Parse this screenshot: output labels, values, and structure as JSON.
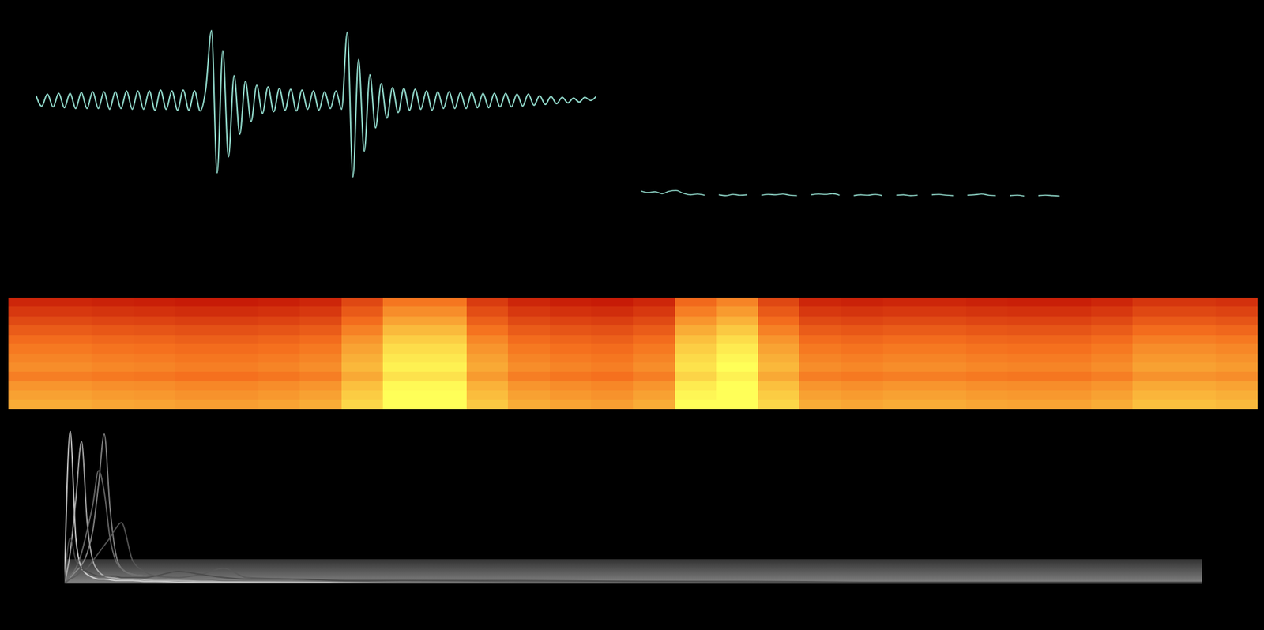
{
  "chart_data": [
    {
      "type": "line",
      "tick_labels": false,
      "color": "#8fd6c8",
      "ylim": [
        -10,
        10
      ],
      "values": [
        0.6,
        -0.7,
        0.8,
        -0.8,
        0.9,
        -0.9,
        0.9,
        -1.0,
        1.0,
        -1.0,
        1.1,
        -1.0,
        1.1,
        -1.1,
        1.1,
        -1.0,
        1.2,
        -1.1,
        1.2,
        -1.1,
        1.2,
        -1.2,
        1.3,
        -1.1,
        1.2,
        -1.2,
        1.3,
        -1.2,
        1.2,
        -1.3,
        1.5,
        8.7,
        -9.0,
        6.2,
        -7.0,
        3.1,
        -4.2,
        2.4,
        -2.6,
        1.9,
        -1.6,
        1.7,
        -1.4,
        1.5,
        -1.2,
        1.4,
        -1.3,
        1.3,
        -1.1,
        1.2,
        -1.2,
        1.1,
        -1.0,
        1.2,
        -1.1,
        8.5,
        -9.5,
        5.1,
        -6.3,
        3.2,
        -3.4,
        2.1,
        -2.2,
        1.6,
        -1.5,
        1.5,
        -1.2,
        1.4,
        -1.1,
        1.2,
        -1.2,
        1.1,
        -1.0,
        1.1,
        -1.0,
        1.0,
        -1.0,
        1.0,
        -0.9,
        0.9,
        -0.9,
        0.9,
        -0.8,
        0.9,
        -0.8,
        0.8,
        -0.7,
        0.8,
        -0.6,
        0.6,
        -0.5,
        0.5,
        -0.4,
        0.4,
        -0.3,
        0.3,
        -0.2,
        0.4,
        0.0,
        0.5
      ]
    },
    {
      "type": "line",
      "tick_labels": false,
      "color": "#8fd6c8",
      "ylim": [
        0,
        10
      ],
      "values": [
        1.6,
        1.2,
        1.4,
        0.9,
        1.5,
        1.7,
        1.0,
        0.6,
        0.8,
        0.5,
        null,
        0.6,
        0.4,
        0.7,
        0.5,
        0.6,
        null,
        0.5,
        0.7,
        0.6,
        0.8,
        0.5,
        0.4,
        null,
        0.6,
        0.8,
        0.7,
        0.9,
        0.5,
        null,
        0.4,
        0.6,
        0.5,
        0.7,
        0.4,
        null,
        0.5,
        0.6,
        0.4,
        0.5,
        null,
        0.6,
        0.7,
        0.5,
        0.4,
        null,
        0.5,
        0.6,
        0.8,
        0.5,
        0.4,
        null,
        0.4,
        0.5,
        0.3,
        null,
        0.4,
        0.5,
        0.4,
        0.3
      ]
    },
    {
      "type": "heatmap",
      "tick_labels": false,
      "zlim": [
        0,
        1
      ],
      "z": [
        [
          0.17,
          0.17,
          0.15,
          0.14,
          0.12,
          0.12,
          0.14,
          0.17,
          0.32,
          0.52,
          0.52,
          0.27,
          0.17,
          0.14,
          0.12,
          0.17,
          0.47,
          0.57,
          0.32,
          0.17,
          0.15,
          0.17,
          0.17,
          0.15,
          0.14,
          0.14,
          0.17,
          0.24,
          0.24,
          0.22
        ],
        [
          0.25,
          0.25,
          0.23,
          0.22,
          0.2,
          0.2,
          0.22,
          0.25,
          0.4,
          0.6,
          0.6,
          0.35,
          0.25,
          0.22,
          0.2,
          0.25,
          0.55,
          0.65,
          0.4,
          0.25,
          0.23,
          0.25,
          0.25,
          0.23,
          0.22,
          0.22,
          0.25,
          0.32,
          0.32,
          0.3
        ],
        [
          0.33,
          0.33,
          0.31,
          0.3,
          0.28,
          0.28,
          0.3,
          0.33,
          0.48,
          0.68,
          0.68,
          0.43,
          0.33,
          0.3,
          0.28,
          0.33,
          0.63,
          0.73,
          0.48,
          0.33,
          0.31,
          0.33,
          0.33,
          0.31,
          0.3,
          0.3,
          0.33,
          0.4,
          0.4,
          0.38
        ],
        [
          0.41,
          0.41,
          0.39,
          0.38,
          0.36,
          0.36,
          0.38,
          0.41,
          0.56,
          0.76,
          0.76,
          0.51,
          0.41,
          0.38,
          0.36,
          0.41,
          0.71,
          0.81,
          0.56,
          0.41,
          0.39,
          0.41,
          0.41,
          0.39,
          0.38,
          0.38,
          0.41,
          0.48,
          0.48,
          0.46
        ],
        [
          0.48,
          0.48,
          0.46,
          0.45,
          0.43,
          0.43,
          0.45,
          0.48,
          0.63,
          0.83,
          0.83,
          0.58,
          0.48,
          0.45,
          0.43,
          0.48,
          0.78,
          0.88,
          0.63,
          0.48,
          0.46,
          0.48,
          0.48,
          0.46,
          0.45,
          0.45,
          0.48,
          0.55,
          0.55,
          0.53
        ],
        [
          0.53,
          0.53,
          0.51,
          0.5,
          0.48,
          0.48,
          0.5,
          0.53,
          0.68,
          0.88,
          0.88,
          0.63,
          0.53,
          0.5,
          0.48,
          0.53,
          0.83,
          0.93,
          0.68,
          0.53,
          0.51,
          0.53,
          0.53,
          0.51,
          0.5,
          0.5,
          0.53,
          0.6,
          0.6,
          0.58
        ],
        [
          0.57,
          0.57,
          0.55,
          0.54,
          0.52,
          0.52,
          0.54,
          0.57,
          0.72,
          0.92,
          0.92,
          0.67,
          0.57,
          0.54,
          0.52,
          0.57,
          0.87,
          0.97,
          0.72,
          0.57,
          0.55,
          0.57,
          0.57,
          0.55,
          0.54,
          0.54,
          0.57,
          0.64,
          0.64,
          0.62
        ],
        [
          0.6,
          0.6,
          0.58,
          0.57,
          0.55,
          0.55,
          0.57,
          0.6,
          0.75,
          0.95,
          0.95,
          0.7,
          0.6,
          0.57,
          0.55,
          0.6,
          0.9,
          1,
          0.75,
          0.6,
          0.58,
          0.6,
          0.6,
          0.58,
          0.57,
          0.57,
          0.6,
          0.67,
          0.67,
          0.65
        ],
        [
          0.55,
          0.55,
          0.53,
          0.52,
          0.5,
          0.5,
          0.52,
          0.55,
          0.7,
          0.9,
          0.9,
          0.65,
          0.55,
          0.52,
          0.5,
          0.55,
          0.85,
          0.95,
          0.7,
          0.55,
          0.53,
          0.55,
          0.55,
          0.53,
          0.52,
          0.52,
          0.55,
          0.62,
          0.62,
          0.6
        ],
        [
          0.63,
          0.63,
          0.61,
          0.6,
          0.58,
          0.58,
          0.6,
          0.63,
          0.78,
          0.98,
          0.98,
          0.73,
          0.63,
          0.6,
          0.58,
          0.63,
          0.93,
          1,
          0.78,
          0.63,
          0.61,
          0.63,
          0.63,
          0.61,
          0.6,
          0.6,
          0.63,
          0.7,
          0.7,
          0.68
        ],
        [
          0.67,
          0.67,
          0.65,
          0.64,
          0.62,
          0.62,
          0.64,
          0.67,
          0.82,
          1,
          1,
          0.77,
          0.67,
          0.64,
          0.62,
          0.67,
          0.97,
          1,
          0.82,
          0.67,
          0.65,
          0.67,
          0.67,
          0.65,
          0.64,
          0.64,
          0.67,
          0.74,
          0.74,
          0.72
        ],
        [
          0.71,
          0.71,
          0.69,
          0.68,
          0.66,
          0.66,
          0.68,
          0.71,
          0.86,
          1,
          1,
          0.81,
          0.71,
          0.68,
          0.66,
          0.71,
          1,
          1,
          0.86,
          0.71,
          0.69,
          0.71,
          0.71,
          0.69,
          0.68,
          0.68,
          0.71,
          0.78,
          0.78,
          0.76
        ]
      ]
    },
    {
      "type": "line",
      "tick_labels": false,
      "xlim": [
        0,
        100
      ],
      "ylim": [
        0,
        10
      ],
      "x": [
        0,
        0.5,
        1,
        1.5,
        2,
        2.5,
        3,
        3.5,
        4,
        4.5,
        5,
        6,
        7,
        8,
        10,
        12,
        14,
        16,
        20,
        25,
        30,
        40,
        50,
        60,
        70,
        80,
        90,
        100
      ],
      "series": [
        {
          "color": "#d8d8d8",
          "values": [
            0,
            10,
            3,
            1,
            0.6,
            0.4,
            0.3,
            0.3,
            0.25,
            0.2,
            0.2,
            0.2,
            0.15,
            0.15,
            0.1,
            0.1,
            0.1,
            0.1,
            0.1,
            0.1,
            0.1,
            0.1,
            0.1,
            0.1,
            0.1,
            0.1,
            0.1,
            0.1
          ]
        },
        {
          "color": "#b4b4b4",
          "values": [
            0,
            2,
            5.5,
            9.3,
            4,
            1.5,
            0.8,
            0.5,
            0.4,
            0.35,
            0.3,
            0.3,
            0.25,
            0.2,
            0.2,
            0.15,
            0.15,
            0.15,
            0.1,
            0.1,
            0.1,
            0.1,
            0.1,
            0.1,
            0.1,
            0.1,
            0.1,
            0.1
          ]
        },
        {
          "color": "#8c8c8c",
          "values": [
            0,
            0.4,
            0.8,
            1.2,
            2,
            3.5,
            6.5,
            9.8,
            5,
            2,
            1,
            0.6,
            0.5,
            0.4,
            0.3,
            0.3,
            0.25,
            0.2,
            0.2,
            0.15,
            0.15,
            0.1,
            0.1,
            0.1,
            0.1,
            0.1,
            0.1,
            0.1
          ]
        },
        {
          "color": "#6e6e6e",
          "values": [
            0,
            0.5,
            1,
            2,
            3.5,
            5.2,
            7.4,
            6,
            3,
            1.5,
            1,
            0.6,
            0.5,
            0.4,
            0.3,
            0.3,
            0.2,
            0.2,
            0.2,
            0.15,
            0.1,
            0.1,
            0.1,
            0.1,
            0.1,
            0.1,
            0.1,
            0.1
          ]
        },
        {
          "color": "#5a5a5a",
          "values": [
            0,
            0.3,
            0.5,
            0.8,
            1,
            1.5,
            2,
            2.5,
            3,
            3.6,
            4,
            1.5,
            0.8,
            0.5,
            0.4,
            0.6,
            1,
            0.4,
            0.3,
            0.2,
            0.2,
            0.15,
            0.15,
            0.1,
            0.1,
            0.1,
            0.1,
            0.1
          ]
        },
        {
          "color": "#4a4a4a",
          "values": [
            0,
            3,
            1.5,
            1,
            0.8,
            0.6,
            0.5,
            0.5,
            0.5,
            0.5,
            0.4,
            0.4,
            0.4,
            0.5,
            0.8,
            0.6,
            0.4,
            0.3,
            0.3,
            0.2,
            0.2,
            0.2,
            0.15,
            0.15,
            0.1,
            0.1,
            0.1,
            0.1
          ]
        }
      ]
    }
  ]
}
